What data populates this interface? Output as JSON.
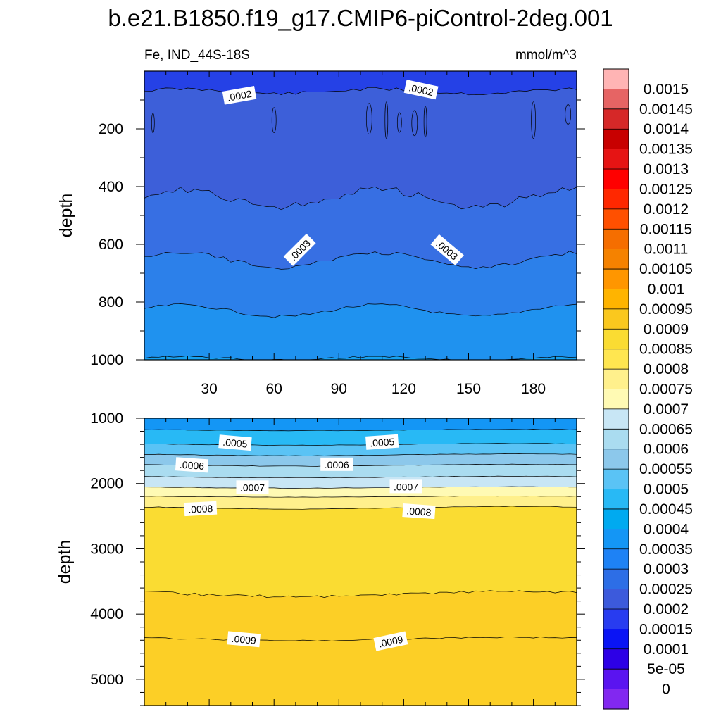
{
  "title": "b.e21.B1850.f19_g17.CMIP6-piControl-2deg.001",
  "subtitle_left": "Fe, IND_44S-18S",
  "subtitle_right": "mmol/m^3",
  "chart_data": [
    {
      "type": "contour",
      "panel": "upper",
      "ylabel": "depth",
      "xlim": [
        0,
        200
      ],
      "ylim": [
        1000,
        0
      ],
      "x_ticks": [
        30,
        60,
        90,
        120,
        150,
        180
      ],
      "y_ticks": [
        200,
        400,
        600,
        800,
        1000
      ],
      "contour_levels": [
        0.00015,
        0.0002,
        0.00025,
        0.0003,
        0.00035,
        0.0004
      ],
      "contour_labels": [
        {
          "text": ".0002",
          "x": 44,
          "depth": 85,
          "angle": -10
        },
        {
          "text": ".0002",
          "x": 128,
          "depth": 65,
          "angle": 12
        },
        {
          "text": ".0003",
          "x": 72,
          "depth": 620,
          "angle": -45
        },
        {
          "text": ".0003",
          "x": 140,
          "depth": 620,
          "angle": 40
        }
      ],
      "contour_depths_approx": [
        {
          "level": 0.0002,
          "depth_mean": 70
        },
        {
          "level": 0.00025,
          "depth_mean": 440
        },
        {
          "level": 0.0003,
          "depth_mean": 650
        },
        {
          "level": 0.00035,
          "depth_mean": 830
        },
        {
          "level": 0.0004,
          "depth_mean": 990
        }
      ]
    },
    {
      "type": "contour",
      "panel": "lower",
      "ylabel": "depth",
      "xlim": [
        0,
        200
      ],
      "ylim": [
        5400,
        1000
      ],
      "x_ticks": [],
      "y_ticks": [
        1000,
        2000,
        3000,
        4000,
        5000
      ],
      "contour_levels": [
        0.00045,
        0.0005,
        0.00055,
        0.0006,
        0.00065,
        0.0007,
        0.00075,
        0.0008,
        0.00085,
        0.0009
      ],
      "contour_labels": [
        {
          "text": ".0005",
          "x": 42,
          "depth": 1380,
          "angle": 5
        },
        {
          "text": ".0005",
          "x": 110,
          "depth": 1370,
          "angle": -4
        },
        {
          "text": ".0006",
          "x": 22,
          "depth": 1720,
          "angle": 4
        },
        {
          "text": ".0006",
          "x": 89,
          "depth": 1710,
          "angle": 0
        },
        {
          "text": ".0007",
          "x": 50,
          "depth": 2060,
          "angle": 0
        },
        {
          "text": ".0007",
          "x": 121,
          "depth": 2050,
          "angle": 0
        },
        {
          "text": ".0008",
          "x": 26,
          "depth": 2390,
          "angle": -3
        },
        {
          "text": ".0008",
          "x": 127,
          "depth": 2430,
          "angle": 4
        },
        {
          "text": ".0009",
          "x": 46,
          "depth": 4390,
          "angle": 5
        },
        {
          "text": ".0009",
          "x": 114,
          "depth": 4420,
          "angle": -12
        }
      ]
    }
  ],
  "colorbar": {
    "levels": [
      "0.0015",
      "0.00145",
      "0.0014",
      "0.00135",
      "0.0013",
      "0.00125",
      "0.0012",
      "0.00115",
      "0.0011",
      "0.00105",
      "0.001",
      "0.00095",
      "0.0009",
      "0.00085",
      "0.0008",
      "0.00075",
      "0.0007",
      "0.00065",
      "0.0006",
      "0.00055",
      "0.0005",
      "0.00045",
      "0.0004",
      "0.00035",
      "0.0003",
      "0.00025",
      "0.0002",
      "0.00015",
      "0.0001",
      "5e-05",
      "0"
    ],
    "colors": [
      "#ffb4b4",
      "#e66464",
      "#d62828",
      "#c80000",
      "#e61414",
      "#ff0000",
      "#ff2800",
      "#ff5000",
      "#f56e00",
      "#f58200",
      "#ff9600",
      "#ffb400",
      "#fac81e",
      "#fadc32",
      "#ffe650",
      "#fff08c",
      "#fffab4",
      "#c8e6f5",
      "#aadcf0",
      "#8cc8eb",
      "#5ac3f5",
      "#28b9f5",
      "#00aaf0",
      "#1496f5",
      "#1e82f5",
      "#2d6ee6",
      "#3c5adc",
      "#283cf0",
      "#0a14f5",
      "#2d00e6",
      "#5a14f0",
      "#8228f0"
    ]
  },
  "colors": {
    "upper_fills": [
      "#2541e6",
      "#3d5fd9",
      "#376fe3",
      "#2c80ea",
      "#1f92ef",
      "#16a2f2"
    ],
    "lower_fills": [
      "#1496f5",
      "#28b9f5",
      "#5ac3f5",
      "#8cc8eb",
      "#aadcf0",
      "#c8e6f5",
      "#fffab4",
      "#fff08c",
      "#fadc32",
      "#fccf26"
    ]
  }
}
